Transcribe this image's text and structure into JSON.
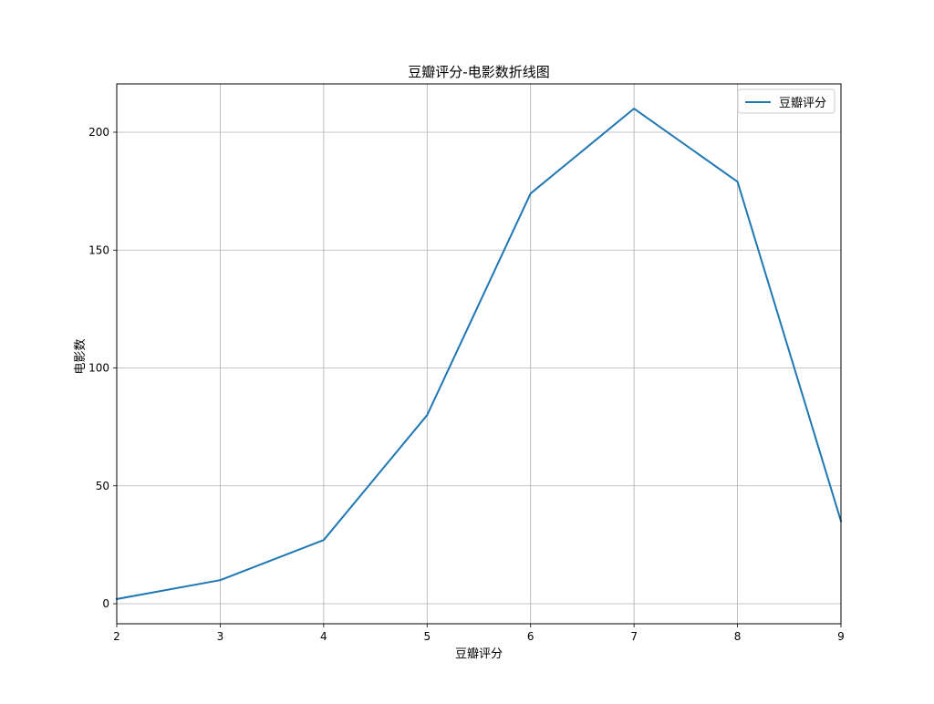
{
  "chart_data": {
    "type": "line",
    "title": "豆瓣评分-电影数折线图",
    "xlabel": "豆瓣评分",
    "ylabel": "电影数",
    "x": [
      2,
      3,
      4,
      5,
      6,
      7,
      8,
      9
    ],
    "series": [
      {
        "name": "豆瓣评分",
        "values": [
          2,
          10,
          27,
          80,
          174,
          210,
          179,
          35
        ],
        "color": "#1f77b4"
      }
    ],
    "xlim": [
      2,
      9
    ],
    "ylim": [
      -8.5,
      220.5
    ],
    "xticks": [
      2,
      3,
      4,
      5,
      6,
      7,
      8,
      9
    ],
    "yticks": [
      0,
      50,
      100,
      150,
      200
    ],
    "grid": true,
    "legend": "upper right"
  }
}
